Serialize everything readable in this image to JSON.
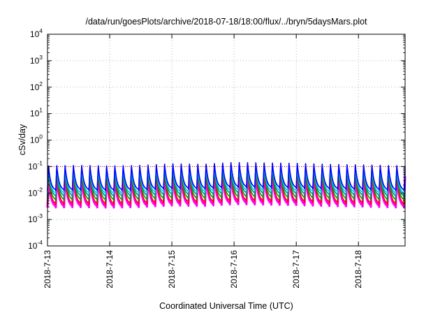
{
  "chart_data": {
    "type": "line",
    "title": "/data/run/goesPlots/archive/2018-07-18/18:00/flux/../bryn/5daysMars.plot",
    "xlabel": "Coordinated Universal Time (UTC)",
    "ylabel": "cSv/day",
    "yscale": "log",
    "ylim": [
      0.0001,
      10000
    ],
    "y_ticks": [
      {
        "base": "10",
        "exp": "-4",
        "value": 0.0001
      },
      {
        "base": "10",
        "exp": "-3",
        "value": 0.001
      },
      {
        "base": "10",
        "exp": "-2",
        "value": 0.01
      },
      {
        "base": "10",
        "exp": "-1",
        "value": 0.1
      },
      {
        "base": "10",
        "exp": "0",
        "value": 1
      },
      {
        "base": "10",
        "exp": "1",
        "value": 10
      },
      {
        "base": "10",
        "exp": "2",
        "value": 100
      },
      {
        "base": "10",
        "exp": "3",
        "value": 1000
      },
      {
        "base": "10",
        "exp": "4",
        "value": 10000
      }
    ],
    "xlim": [
      "2018-07-13 00:00",
      "2018-07-18 18:00"
    ],
    "x_ticks": [
      "2018-7-13",
      "2018-7-14",
      "2018-7-15",
      "2018-7-16",
      "2018-7-17",
      "2018-7-18"
    ],
    "grid": true,
    "reference_line": {
      "value": 0.1,
      "color": "#ff0000",
      "style": "dotted"
    },
    "oscillation": {
      "cycles_per_day": 7.5,
      "pattern": "sawtooth (sharp rise, exponential decay)"
    },
    "series": [
      {
        "color": "#ff00ff",
        "peak": 0.045,
        "trough": 0.0028
      },
      {
        "color": "#ff0000",
        "peak": 0.06,
        "trough": 0.0035
      },
      {
        "color": "#00a000",
        "peak": 0.075,
        "trough": 0.005
      },
      {
        "color": "#009090",
        "peak": 0.085,
        "trough": 0.007
      },
      {
        "color": "#00ced1",
        "peak": 0.095,
        "trough": 0.009
      },
      {
        "color": "#0000ff",
        "peak": 0.11,
        "trough": 0.012
      }
    ],
    "envelope": [
      {
        "date": "2018-07-13 00:00",
        "factor": 1.0
      },
      {
        "date": "2018-07-13 12:00",
        "factor": 1.05
      },
      {
        "date": "2018-07-14 00:00",
        "factor": 1.0
      },
      {
        "date": "2018-07-14 12:00",
        "factor": 1.05
      },
      {
        "date": "2018-07-15 00:00",
        "factor": 1.2
      },
      {
        "date": "2018-07-15 12:00",
        "factor": 1.15
      },
      {
        "date": "2018-07-16 00:00",
        "factor": 1.35
      },
      {
        "date": "2018-07-16 12:00",
        "factor": 1.3
      },
      {
        "date": "2018-07-17 00:00",
        "factor": 1.25
      },
      {
        "date": "2018-07-17 12:00",
        "factor": 1.15
      },
      {
        "date": "2018-07-18 00:00",
        "factor": 1.1
      },
      {
        "date": "2018-07-18 18:00",
        "factor": 1.0
      }
    ]
  }
}
